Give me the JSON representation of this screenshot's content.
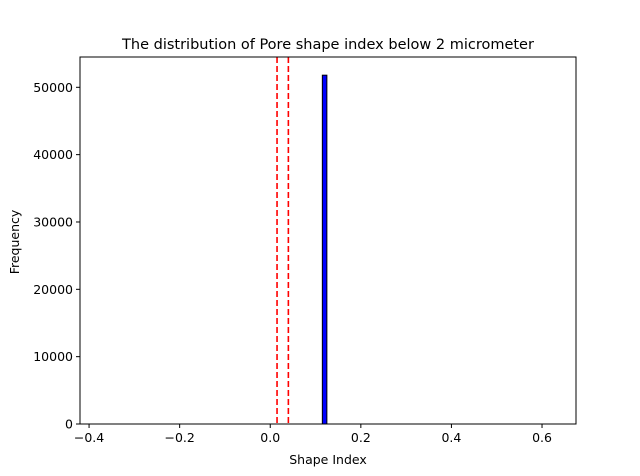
{
  "chart_data": {
    "type": "bar",
    "title": "The distribution of Pore shape index below 2 micrometer",
    "xlabel": "Shape Index",
    "ylabel": "Frequency",
    "xlim": [
      -0.42,
      0.675
    ],
    "ylim": [
      0,
      54500
    ],
    "x_ticks": [
      -0.4,
      -0.2,
      0.0,
      0.2,
      0.4,
      0.6
    ],
    "x_tick_labels": [
      "−0.4",
      "−0.2",
      "0.0",
      "0.2",
      "0.4",
      "0.6"
    ],
    "y_ticks": [
      0,
      10000,
      20000,
      30000,
      40000,
      50000
    ],
    "y_tick_labels": [
      "0",
      "10000",
      "20000",
      "30000",
      "40000",
      "50000"
    ],
    "bins": [
      {
        "x_start": 0.115,
        "x_end": 0.125,
        "value": 51800
      }
    ],
    "bar_color": "#0000ff",
    "bar_edge_color": "#000000",
    "reference_lines": [
      {
        "x": 0.015,
        "color": "#ff0000",
        "style": "dashed"
      },
      {
        "x": 0.04,
        "color": "#ff0000",
        "style": "dashed"
      }
    ],
    "grid": false,
    "legend": "none"
  }
}
